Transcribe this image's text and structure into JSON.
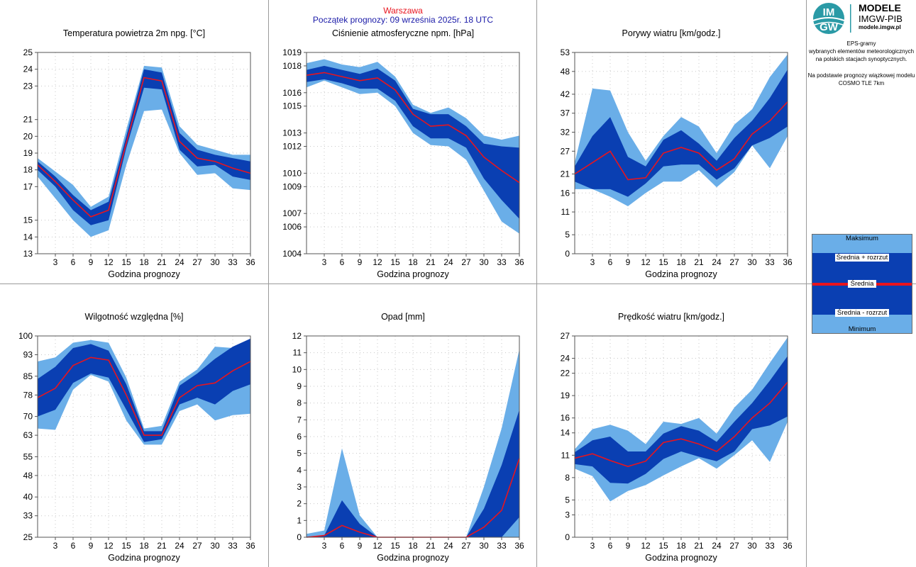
{
  "header": {
    "city": "Warszawa",
    "start": "Początek prognozy: 09 września 2025r. 18 UTC"
  },
  "logo": {
    "title": "MODELE",
    "subtitle": "IMGW-PIB",
    "url": "modele.imgw.pl",
    "badge_top": "IM",
    "badge_bottom": "GW"
  },
  "info": {
    "line1": "EPS-gramy",
    "line2": "wybranych elementów meteorologicznych",
    "line3": "na polskich stacjach  synoptycznych.",
    "line4": "Na podstawie prognozy wiązkowej modelu",
    "line5": "COSMO TLE 7km"
  },
  "legend": {
    "max": "Maksimum",
    "mean_plus": "Średnia + rozrzut",
    "mean": "Średnia",
    "mean_minus": "Średnia - rozrzut",
    "min": "Minimum"
  },
  "colors": {
    "outer_band": "#6aaee8",
    "inner_band": "#0a3fb2",
    "mean_line": "#e8141e",
    "grid_dots": "#c8c8c8"
  },
  "chart_data": [
    {
      "type": "area",
      "title": "Temperatura powietrza 2m npg. [°C]",
      "xlabel": "Godzina prognozy",
      "ylabel": "",
      "x": [
        0,
        3,
        6,
        9,
        12,
        15,
        18,
        21,
        24,
        27,
        30,
        33,
        36
      ],
      "xticks": [
        3,
        6,
        9,
        12,
        15,
        18,
        21,
        24,
        27,
        30,
        33,
        36
      ],
      "ylim": [
        13,
        25
      ],
      "yticks": [
        13,
        14,
        15,
        17,
        18,
        19,
        20,
        21,
        23,
        24,
        25
      ],
      "series": [
        {
          "name": "Maksimum",
          "values": [
            18.7,
            17.9,
            17.1,
            15.8,
            16.4,
            20.4,
            24.2,
            24.1,
            20.6,
            19.5,
            19.2,
            18.9,
            18.9
          ]
        },
        {
          "name": "Średnia + rozrzut",
          "values": [
            18.5,
            17.6,
            16.5,
            15.6,
            16.1,
            20.0,
            24.0,
            23.8,
            20.2,
            19.2,
            18.9,
            18.7,
            18.5
          ]
        },
        {
          "name": "Średnia",
          "values": [
            18.3,
            17.3,
            16.2,
            15.2,
            15.6,
            19.6,
            23.5,
            23.3,
            19.7,
            18.7,
            18.5,
            18.1,
            17.8
          ]
        },
        {
          "name": "Średnia - rozrzut",
          "values": [
            18.0,
            17.0,
            15.6,
            14.7,
            15.0,
            19.3,
            22.9,
            22.8,
            19.2,
            18.2,
            18.3,
            17.6,
            17.4
          ]
        },
        {
          "name": "Minimum",
          "values": [
            17.6,
            16.3,
            15.0,
            14.0,
            14.4,
            18.3,
            21.5,
            21.6,
            19.0,
            17.7,
            17.8,
            16.9,
            16.8
          ]
        }
      ]
    },
    {
      "type": "area",
      "title": "Ciśnienie atmosferyczne npm. [hPa]",
      "xlabel": "Godzina prognozy",
      "ylabel": "",
      "x": [
        0,
        3,
        6,
        9,
        12,
        15,
        18,
        21,
        24,
        27,
        30,
        33,
        36
      ],
      "xticks": [
        3,
        6,
        9,
        12,
        15,
        18,
        21,
        24,
        27,
        30,
        33,
        36
      ],
      "ylim": [
        1004,
        1019
      ],
      "yticks": [
        1004,
        1006,
        1007,
        1009,
        1010,
        1012,
        1013,
        1015,
        1016,
        1018,
        1019
      ],
      "series": [
        {
          "name": "Maksimum",
          "values": [
            1018.2,
            1018.5,
            1018.1,
            1017.9,
            1018.3,
            1017.2,
            1015.1,
            1014.5,
            1014.9,
            1014.1,
            1012.8,
            1012.5,
            1012.8
          ]
        },
        {
          "name": "Średnia + rozrzut",
          "values": [
            1017.7,
            1018.0,
            1017.7,
            1017.4,
            1017.8,
            1016.9,
            1014.8,
            1014.4,
            1014.4,
            1013.5,
            1012.2,
            1012.0,
            1011.9
          ]
        },
        {
          "name": "Średnia",
          "values": [
            1017.3,
            1017.5,
            1017.2,
            1016.9,
            1017.1,
            1016.2,
            1014.4,
            1013.5,
            1013.6,
            1012.8,
            1011.2,
            1010.2,
            1009.3
          ]
        },
        {
          "name": "Średnia - rozrzut",
          "values": [
            1016.8,
            1017.0,
            1016.7,
            1016.3,
            1016.3,
            1015.4,
            1013.5,
            1012.6,
            1012.6,
            1011.9,
            1009.6,
            1008.0,
            1006.6
          ]
        },
        {
          "name": "Minimum",
          "values": [
            1016.4,
            1016.9,
            1016.4,
            1015.9,
            1016.0,
            1015.0,
            1013.0,
            1012.1,
            1012.0,
            1011.0,
            1008.7,
            1006.4,
            1005.5
          ]
        }
      ]
    },
    {
      "type": "area",
      "title": "Porywy wiatru [km/godz.]",
      "xlabel": "Godzina prognozy",
      "ylabel": "",
      "x": [
        0,
        3,
        6,
        9,
        12,
        15,
        18,
        21,
        24,
        27,
        30,
        33,
        36
      ],
      "xticks": [
        3,
        6,
        9,
        12,
        15,
        18,
        21,
        24,
        27,
        30,
        33,
        36
      ],
      "ylim": [
        0,
        53
      ],
      "yticks": [
        0,
        5,
        11,
        16,
        21,
        27,
        32,
        37,
        42,
        48,
        53
      ],
      "series": [
        {
          "name": "Maksimum",
          "values": [
            24.0,
            43.5,
            43.0,
            32.0,
            24.5,
            31.0,
            36.0,
            33.5,
            26.5,
            34.0,
            38.0,
            46.5,
            52.5
          ]
        },
        {
          "name": "Średnia + rozrzut",
          "values": [
            23.0,
            31.0,
            36.0,
            25.5,
            23.0,
            30.0,
            32.5,
            29.0,
            24.5,
            30.5,
            35.0,
            41.0,
            48.5
          ]
        },
        {
          "name": "Średnia",
          "values": [
            21.0,
            24.0,
            27.0,
            19.5,
            20.0,
            26.5,
            28.0,
            26.5,
            22.0,
            25.0,
            31.5,
            35.0,
            40.0
          ]
        },
        {
          "name": "Średnia - rozrzut",
          "values": [
            19.0,
            17.0,
            17.0,
            15.0,
            18.5,
            23.0,
            23.5,
            23.5,
            19.5,
            22.5,
            28.5,
            30.5,
            33.5
          ]
        },
        {
          "name": "Minimum",
          "values": [
            17.0,
            17.0,
            15.0,
            12.5,
            16.0,
            19.0,
            19.0,
            22.0,
            17.5,
            21.5,
            28.5,
            22.5,
            31.0
          ]
        }
      ]
    },
    {
      "type": "area",
      "title": "Wilgotność względna [%]",
      "xlabel": "Godzina prognozy",
      "ylabel": "",
      "x": [
        0,
        3,
        6,
        9,
        12,
        15,
        18,
        21,
        24,
        27,
        30,
        33,
        36
      ],
      "xticks": [
        3,
        6,
        9,
        12,
        15,
        18,
        21,
        24,
        27,
        30,
        33,
        36
      ],
      "ylim": [
        25,
        100
      ],
      "yticks": [
        25,
        33,
        40,
        48,
        55,
        63,
        70,
        78,
        85,
        93,
        100
      ],
      "series": [
        {
          "name": "Maksimum",
          "values": [
            90.5,
            92.0,
            97.5,
            98.5,
            97.5,
            84.5,
            65.5,
            66.5,
            83.0,
            87.5,
            96.0,
            95.5,
            99.0
          ]
        },
        {
          "name": "Średnia + rozrzut",
          "values": [
            84.0,
            88.5,
            95.5,
            97.0,
            94.5,
            82.0,
            64.5,
            64.5,
            81.5,
            86.0,
            91.5,
            96.0,
            99.0
          ]
        },
        {
          "name": "Średnia",
          "values": [
            77.0,
            80.5,
            89.0,
            92.0,
            91.0,
            78.0,
            63.0,
            63.0,
            77.0,
            81.5,
            82.5,
            87.0,
            90.5
          ]
        },
        {
          "name": "Średnia - rozrzut",
          "values": [
            70.0,
            72.5,
            82.5,
            86.0,
            84.5,
            72.5,
            60.5,
            61.5,
            74.5,
            77.0,
            74.5,
            79.5,
            82.0
          ]
        },
        {
          "name": "Minimum",
          "values": [
            65.5,
            65.0,
            80.0,
            85.5,
            83.0,
            68.5,
            59.5,
            59.5,
            72.0,
            74.5,
            68.5,
            70.5,
            71.0
          ]
        }
      ]
    },
    {
      "type": "area",
      "title": "Opad [mm]",
      "xlabel": "Godzina prognozy",
      "ylabel": "",
      "x": [
        0,
        3,
        6,
        9,
        12,
        15,
        18,
        21,
        24,
        27,
        30,
        33,
        36
      ],
      "xticks": [
        3,
        6,
        9,
        12,
        15,
        18,
        21,
        24,
        27,
        30,
        33,
        36
      ],
      "ylim": [
        0,
        12
      ],
      "yticks": [
        0,
        1,
        2,
        3,
        4,
        5,
        6,
        7,
        8,
        9,
        10,
        11,
        12
      ],
      "series": [
        {
          "name": "Maksimum",
          "values": [
            0.2,
            0.4,
            5.3,
            1.3,
            0.0,
            0.0,
            0.0,
            0.0,
            0.0,
            0.0,
            3.0,
            6.5,
            11.2
          ]
        },
        {
          "name": "Średnia + rozrzut",
          "values": [
            0.0,
            0.1,
            2.2,
            0.8,
            0.0,
            0.0,
            0.0,
            0.0,
            0.0,
            0.0,
            1.7,
            4.3,
            7.6
          ]
        },
        {
          "name": "Średnia",
          "values": [
            0.0,
            0.1,
            0.7,
            0.3,
            0.0,
            0.0,
            0.0,
            0.0,
            0.0,
            0.0,
            0.6,
            1.6,
            4.7
          ]
        },
        {
          "name": "Średnia - rozrzut",
          "values": [
            0.0,
            0.0,
            0.0,
            0.0,
            0.0,
            0.0,
            0.0,
            0.0,
            0.0,
            0.0,
            0.0,
            0.0,
            1.2
          ]
        },
        {
          "name": "Minimum",
          "values": [
            0.0,
            0.0,
            0.0,
            0.0,
            0.0,
            0.0,
            0.0,
            0.0,
            0.0,
            0.0,
            0.0,
            0.0,
            0.0
          ]
        }
      ]
    },
    {
      "type": "area",
      "title": "Prędkość wiatru [km/godz.]",
      "xlabel": "Godzina prognozy",
      "ylabel": "",
      "x": [
        0,
        3,
        6,
        9,
        12,
        15,
        18,
        21,
        24,
        27,
        30,
        33,
        36
      ],
      "xticks": [
        3,
        6,
        9,
        12,
        15,
        18,
        21,
        24,
        27,
        30,
        33,
        36
      ],
      "ylim": [
        0,
        27
      ],
      "yticks": [
        0,
        3,
        5,
        8,
        11,
        14,
        16,
        19,
        22,
        24,
        27
      ],
      "series": [
        {
          "name": "Maksimum",
          "values": [
            11.8,
            14.5,
            15.1,
            14.3,
            12.5,
            15.5,
            15.2,
            16.0,
            13.9,
            17.4,
            19.8,
            23.4,
            26.8
          ]
        },
        {
          "name": "Średnia + rozrzut",
          "values": [
            11.4,
            13.0,
            13.5,
            11.5,
            11.5,
            13.9,
            14.9,
            14.3,
            12.8,
            15.5,
            18.0,
            21.0,
            24.3
          ]
        },
        {
          "name": "Średnia",
          "values": [
            10.6,
            11.2,
            10.3,
            9.5,
            10.2,
            12.7,
            13.2,
            12.5,
            11.5,
            13.5,
            16.0,
            18.0,
            20.8
          ]
        },
        {
          "name": "Średnia - rozrzut",
          "values": [
            9.8,
            9.5,
            7.3,
            7.2,
            8.5,
            10.5,
            11.5,
            10.8,
            10.2,
            11.5,
            14.5,
            15.0,
            16.2
          ]
        },
        {
          "name": "Minimum",
          "values": [
            9.2,
            8.2,
            4.8,
            6.2,
            7.0,
            8.3,
            9.5,
            10.6,
            9.2,
            11.0,
            13.0,
            10.1,
            15.5
          ]
        }
      ]
    }
  ]
}
